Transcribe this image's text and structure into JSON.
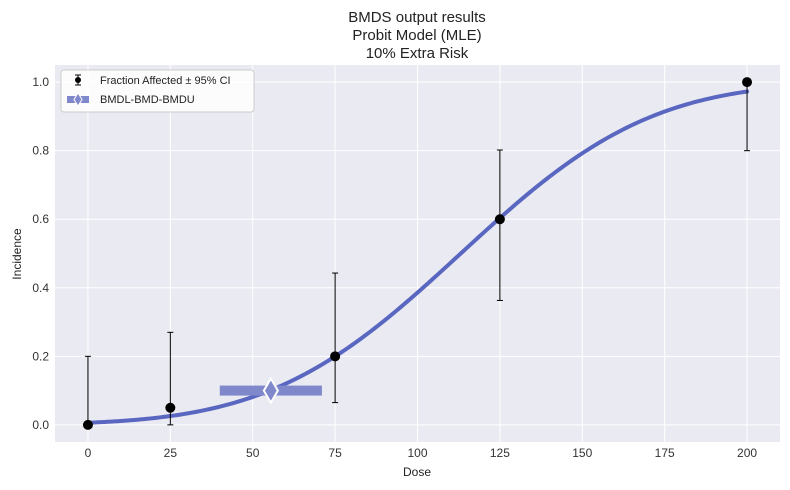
{
  "chart_data": {
    "type": "scatter",
    "title": [
      "BMDS output results",
      "Probit Model (MLE)",
      "10% Extra Risk"
    ],
    "xlabel": "Dose",
    "ylabel": "Incidence",
    "xlim": [
      -10,
      210
    ],
    "ylim": [
      -0.05,
      1.05
    ],
    "xticks": [
      0,
      25,
      50,
      75,
      100,
      125,
      150,
      175,
      200
    ],
    "yticks": [
      0.0,
      0.2,
      0.4,
      0.6,
      0.8,
      1.0
    ],
    "xtick_labels": [
      "0",
      "25",
      "50",
      "75",
      "100",
      "125",
      "150",
      "175",
      "200"
    ],
    "ytick_labels": [
      "0.0",
      "0.2",
      "0.4",
      "0.6",
      "0.8",
      "1.0"
    ],
    "grid": true,
    "legend_position": "top-left",
    "legend": {
      "points_label": "Fraction Affected ± 95% CI",
      "bmd_label": "BMDL-BMD-BMDU"
    },
    "points": [
      {
        "x": 0,
        "y": 0.0,
        "lower": 0.0,
        "upper": 0.2
      },
      {
        "x": 25,
        "y": 0.05,
        "lower": 0.0,
        "upper": 0.27
      },
      {
        "x": 75,
        "y": 0.2,
        "lower": 0.065,
        "upper": 0.443
      },
      {
        "x": 125,
        "y": 0.6,
        "lower": 0.363,
        "upper": 0.802
      },
      {
        "x": 200,
        "y": 1.0,
        "lower": 0.8,
        "upper": 1.0
      }
    ],
    "model_curve": {
      "name": "Probit Model (MLE)",
      "color": "#5a67c0",
      "intercept": -2.5,
      "slope": 0.0221,
      "x_range": [
        0,
        200
      ]
    },
    "bmd": {
      "bmdl": 40,
      "bmd": 55.5,
      "bmdu": 71,
      "risk": 0.1,
      "color": "#8088cc"
    }
  }
}
